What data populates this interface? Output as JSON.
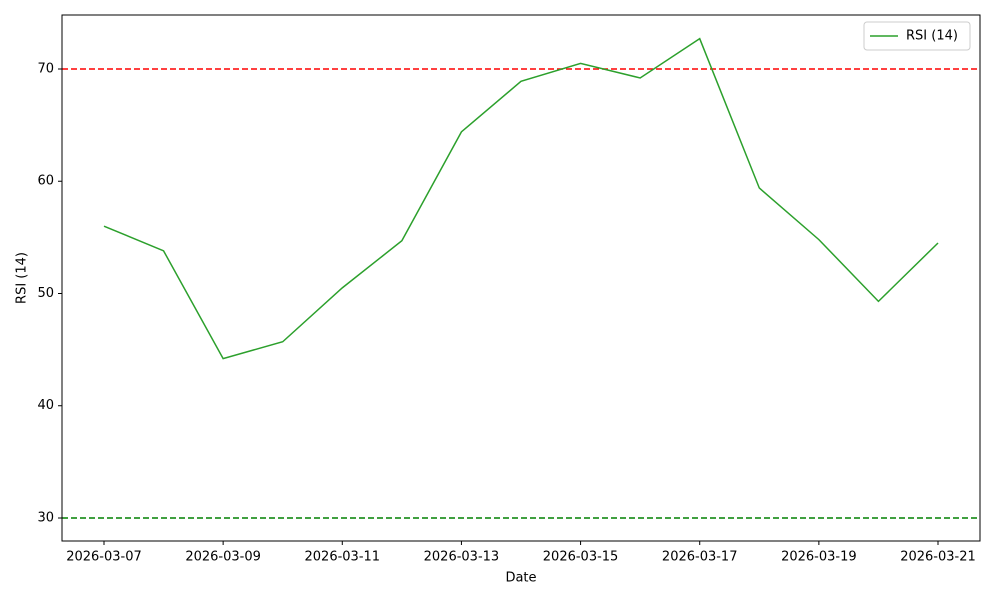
{
  "chart_data": {
    "type": "line",
    "x_label": "Date",
    "y_label": "RSI (14)",
    "x": [
      "2026-03-07",
      "2026-03-08",
      "2026-03-09",
      "2026-03-10",
      "2026-03-11",
      "2026-03-12",
      "2026-03-13",
      "2026-03-14",
      "2026-03-15",
      "2026-03-16",
      "2026-03-17",
      "2026-03-18",
      "2026-03-19",
      "2026-03-20",
      "2026-03-21"
    ],
    "series": [
      {
        "name": "RSI (14)",
        "color": "#2ca02c",
        "values": [
          56.0,
          53.8,
          44.2,
          45.7,
          50.5,
          54.7,
          64.4,
          68.9,
          70.5,
          69.2,
          72.7,
          59.4,
          54.8,
          49.3,
          54.5
        ]
      }
    ],
    "hlines": [
      {
        "value": 70,
        "color": "#ff0000"
      },
      {
        "value": 30,
        "color": "#008000"
      }
    ],
    "xlim": [
      "2026-03-06T07:05",
      "2026-03-21T16:55"
    ],
    "xticks": [
      "2026-03-07",
      "2026-03-09",
      "2026-03-11",
      "2026-03-13",
      "2026-03-15",
      "2026-03-17",
      "2026-03-19",
      "2026-03-21"
    ],
    "ylim": [
      27.95,
      74.81
    ],
    "yticks": [
      30,
      40,
      50,
      60,
      70
    ],
    "legend": "upper right",
    "grid": false
  }
}
